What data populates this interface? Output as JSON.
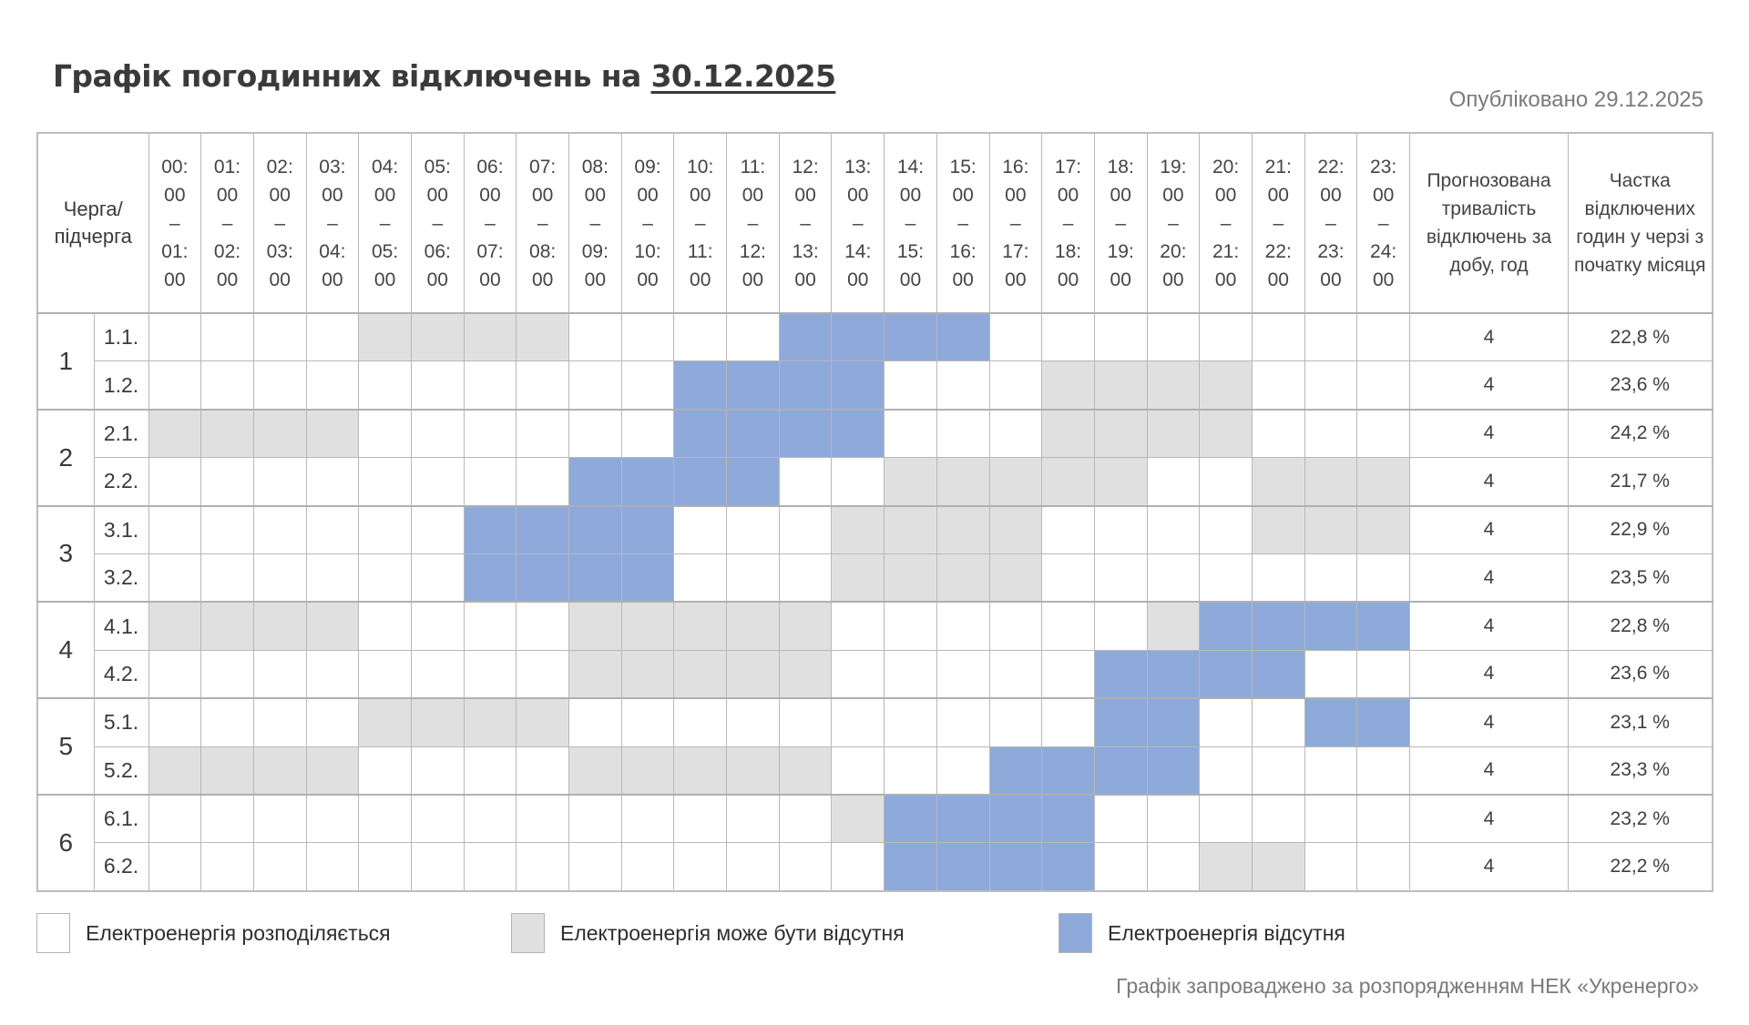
{
  "header": {
    "title_prefix": "Графік погодинних відключень на",
    "title_date": "30.12.2025",
    "published": "Опубліковано 29.12.2025"
  },
  "table": {
    "queue_header": [
      "Черга/",
      "підчерга"
    ],
    "duration_header": "Прогнозована тривалість відключень за добу, год",
    "share_header": "Частка відключених годин у черзі з початку місяця",
    "hours": [
      {
        "from_h": "00:",
        "from_m": "00",
        "dash": "–",
        "to_h": "01:",
        "to_m": "00"
      },
      {
        "from_h": "01:",
        "from_m": "00",
        "dash": "–",
        "to_h": "02:",
        "to_m": "00"
      },
      {
        "from_h": "02:",
        "from_m": "00",
        "dash": "–",
        "to_h": "03:",
        "to_m": "00"
      },
      {
        "from_h": "03:",
        "from_m": "00",
        "dash": "–",
        "to_h": "04:",
        "to_m": "00"
      },
      {
        "from_h": "04:",
        "from_m": "00",
        "dash": "–",
        "to_h": "05:",
        "to_m": "00"
      },
      {
        "from_h": "05:",
        "from_m": "00",
        "dash": "–",
        "to_h": "06:",
        "to_m": "00"
      },
      {
        "from_h": "06:",
        "from_m": "00",
        "dash": "–",
        "to_h": "07:",
        "to_m": "00"
      },
      {
        "from_h": "07:",
        "from_m": "00",
        "dash": "–",
        "to_h": "08:",
        "to_m": "00"
      },
      {
        "from_h": "08:",
        "from_m": "00",
        "dash": "–",
        "to_h": "09:",
        "to_m": "00"
      },
      {
        "from_h": "09:",
        "from_m": "00",
        "dash": "–",
        "to_h": "10:",
        "to_m": "00"
      },
      {
        "from_h": "10:",
        "from_m": "00",
        "dash": "–",
        "to_h": "11:",
        "to_m": "00"
      },
      {
        "from_h": "11:",
        "from_m": "00",
        "dash": "–",
        "to_h": "12:",
        "to_m": "00"
      },
      {
        "from_h": "12:",
        "from_m": "00",
        "dash": "–",
        "to_h": "13:",
        "to_m": "00"
      },
      {
        "from_h": "13:",
        "from_m": "00",
        "dash": "–",
        "to_h": "14:",
        "to_m": "00"
      },
      {
        "from_h": "14:",
        "from_m": "00",
        "dash": "–",
        "to_h": "15:",
        "to_m": "00"
      },
      {
        "from_h": "15:",
        "from_m": "00",
        "dash": "–",
        "to_h": "16:",
        "to_m": "00"
      },
      {
        "from_h": "16:",
        "from_m": "00",
        "dash": "–",
        "to_h": "17:",
        "to_m": "00"
      },
      {
        "from_h": "17:",
        "from_m": "00",
        "dash": "–",
        "to_h": "18:",
        "to_m": "00"
      },
      {
        "from_h": "18:",
        "from_m": "00",
        "dash": "–",
        "to_h": "19:",
        "to_m": "00"
      },
      {
        "from_h": "19:",
        "from_m": "00",
        "dash": "–",
        "to_h": "20:",
        "to_m": "00"
      },
      {
        "from_h": "20:",
        "from_m": "00",
        "dash": "–",
        "to_h": "21:",
        "to_m": "00"
      },
      {
        "from_h": "21:",
        "from_m": "00",
        "dash": "–",
        "to_h": "22:",
        "to_m": "00"
      },
      {
        "from_h": "22:",
        "from_m": "00",
        "dash": "–",
        "to_h": "23:",
        "to_m": "00"
      },
      {
        "from_h": "23:",
        "from_m": "00",
        "dash": "–",
        "to_h": "24:",
        "to_m": "00"
      }
    ],
    "status_legend_codes": {
      "0": "available",
      "1": "maybe",
      "2": "off"
    },
    "rows": [
      {
        "group": "1",
        "sub": "1.1.",
        "duration": "4",
        "share": "22,8 %",
        "slots": [
          0,
          0,
          0,
          0,
          1,
          1,
          1,
          1,
          0,
          0,
          0,
          0,
          2,
          2,
          2,
          2,
          0,
          0,
          0,
          0,
          0,
          0,
          0,
          0
        ]
      },
      {
        "group": "1",
        "sub": "1.2.",
        "duration": "4",
        "share": "23,6 %",
        "slots": [
          0,
          0,
          0,
          0,
          0,
          0,
          0,
          0,
          0,
          0,
          2,
          2,
          2,
          2,
          0,
          0,
          0,
          1,
          1,
          1,
          1,
          0,
          0,
          0
        ]
      },
      {
        "group": "2",
        "sub": "2.1.",
        "duration": "4",
        "share": "24,2 %",
        "slots": [
          1,
          1,
          1,
          1,
          0,
          0,
          0,
          0,
          0,
          0,
          2,
          2,
          2,
          2,
          0,
          0,
          0,
          1,
          1,
          1,
          1,
          0,
          0,
          0
        ]
      },
      {
        "group": "2",
        "sub": "2.2.",
        "duration": "4",
        "share": "21,7 %",
        "slots": [
          0,
          0,
          0,
          0,
          0,
          0,
          0,
          0,
          2,
          2,
          2,
          2,
          0,
          0,
          1,
          1,
          1,
          1,
          1,
          0,
          0,
          1,
          1,
          1
        ]
      },
      {
        "group": "3",
        "sub": "3.1.",
        "duration": "4",
        "share": "22,9 %",
        "slots": [
          0,
          0,
          0,
          0,
          0,
          0,
          2,
          2,
          2,
          2,
          0,
          0,
          0,
          1,
          1,
          1,
          1,
          0,
          0,
          0,
          0,
          1,
          1,
          1
        ]
      },
      {
        "group": "3",
        "sub": "3.2.",
        "duration": "4",
        "share": "23,5 %",
        "slots": [
          0,
          0,
          0,
          0,
          0,
          0,
          2,
          2,
          2,
          2,
          0,
          0,
          0,
          1,
          1,
          1,
          1,
          0,
          0,
          0,
          0,
          0,
          0,
          0
        ]
      },
      {
        "group": "4",
        "sub": "4.1.",
        "duration": "4",
        "share": "22,8 %",
        "slots": [
          1,
          1,
          1,
          1,
          0,
          0,
          0,
          0,
          1,
          1,
          1,
          1,
          1,
          0,
          0,
          0,
          0,
          0,
          0,
          1,
          2,
          2,
          2,
          2
        ]
      },
      {
        "group": "4",
        "sub": "4.2.",
        "duration": "4",
        "share": "23,6 %",
        "slots": [
          0,
          0,
          0,
          0,
          0,
          0,
          0,
          0,
          1,
          1,
          1,
          1,
          1,
          0,
          0,
          0,
          0,
          0,
          2,
          2,
          2,
          2,
          0,
          0
        ]
      },
      {
        "group": "5",
        "sub": "5.1.",
        "duration": "4",
        "share": "23,1 %",
        "slots": [
          0,
          0,
          0,
          0,
          1,
          1,
          1,
          1,
          0,
          0,
          0,
          0,
          0,
          0,
          0,
          0,
          0,
          0,
          2,
          2,
          0,
          0,
          2,
          2
        ]
      },
      {
        "group": "5",
        "sub": "5.2.",
        "duration": "4",
        "share": "23,3 %",
        "slots": [
          1,
          1,
          1,
          1,
          0,
          0,
          0,
          0,
          1,
          1,
          1,
          1,
          1,
          0,
          0,
          0,
          2,
          2,
          2,
          2,
          0,
          0,
          0,
          0
        ]
      },
      {
        "group": "6",
        "sub": "6.1.",
        "duration": "4",
        "share": "23,2 %",
        "slots": [
          0,
          0,
          0,
          0,
          0,
          0,
          0,
          0,
          0,
          0,
          0,
          0,
          0,
          1,
          2,
          2,
          2,
          2,
          0,
          0,
          0,
          0,
          0,
          0
        ]
      },
      {
        "group": "6",
        "sub": "6.2.",
        "duration": "4",
        "share": "22,2 %",
        "slots": [
          0,
          0,
          0,
          0,
          0,
          0,
          0,
          0,
          0,
          0,
          0,
          0,
          0,
          0,
          2,
          2,
          2,
          2,
          0,
          0,
          1,
          1,
          0,
          0
        ]
      }
    ]
  },
  "legend": {
    "available": "Електроенергія розподіляється",
    "maybe": "Електроенергія може бути відсутня",
    "off": "Електроенергія відсутня"
  },
  "colors": {
    "available": "#ffffff",
    "maybe": "#e0e0e0",
    "off": "#8eaadb",
    "grid_line": "#b8b8b8"
  },
  "footer": {
    "note": "Графік запроваджено за розпорядженням НЕК «Укренерго»"
  }
}
